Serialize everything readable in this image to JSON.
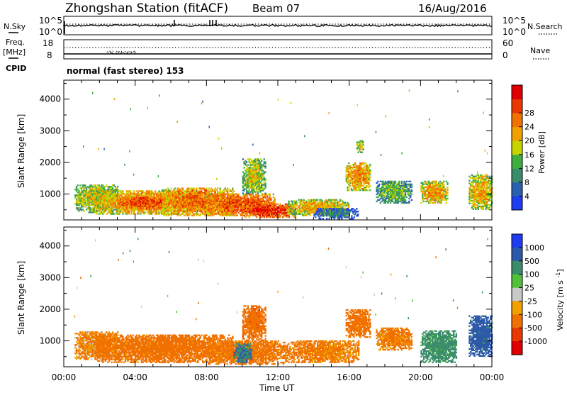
{
  "header": {
    "station": "Zhongshan Station (fitACF)",
    "beam": "Beam 07",
    "date": "16/Aug/2016"
  },
  "strip_panels": {
    "nsky_label": "N.Sky",
    "nsky_ticks": [
      "10^5",
      "10^0"
    ],
    "nsearch_label": "N.Search",
    "nsearch_ticks": [
      "10^5",
      "10^0"
    ],
    "freq_label_1": "Freq.",
    "freq_label_2": "[MHz]",
    "freq_ticks": [
      "18",
      "8"
    ],
    "nave_label": "Nave",
    "nave_ticks": [
      "60",
      "0"
    ],
    "cpid_label": "CPID",
    "cpid_text": "normal (fast stereo) 153"
  },
  "axes": {
    "ylabel": "Slant Range [km]",
    "xlabel": "Time UT",
    "yticks": [
      "1000",
      "2000",
      "3000",
      "4000"
    ],
    "xticks": [
      "00:00",
      "04:00",
      "08:00",
      "12:00",
      "16:00",
      "20:00",
      "00:00"
    ]
  },
  "power_colorbar": {
    "label": "Power [dB]",
    "ticks": [
      "4",
      "8",
      "12",
      "16",
      "20",
      "24",
      "28"
    ],
    "colors": [
      "#1f3cf0",
      "#2b5fb0",
      "#3a8c6a",
      "#3fae3f",
      "#c8d400",
      "#f0a000",
      "#f07000",
      "#e83800",
      "#e00000"
    ]
  },
  "velocity_colorbar": {
    "label": "Velocity [m s^-1]",
    "ticks": [
      "1000",
      "500",
      "100",
      "25",
      "-25",
      "-100",
      "-500",
      "-1000"
    ],
    "colors": [
      "#1f3cf0",
      "#2d5aa8",
      "#3a8c6a",
      "#52c03a",
      "#c8c8c8",
      "#f0a000",
      "#f07000",
      "#e83800",
      "#e00000"
    ]
  },
  "chart_data": [
    {
      "type": "heatmap",
      "title": "Power [dB]",
      "xlabel": "Time UT",
      "ylabel": "Slant Range [km]",
      "xlim": [
        0,
        24
      ],
      "ylim": [
        180,
        4600
      ],
      "clim": [
        0,
        32
      ],
      "blobs": [
        {
          "t0": 0.6,
          "t1": 3.0,
          "r0": 400,
          "r1": 1300,
          "p": 18
        },
        {
          "t0": 1.8,
          "t1": 7.5,
          "r0": 350,
          "r1": 1100,
          "p": 22
        },
        {
          "t0": 3.0,
          "t1": 6.0,
          "r0": 500,
          "r1": 900,
          "p": 27
        },
        {
          "t0": 5.5,
          "t1": 9.5,
          "r0": 300,
          "r1": 1200,
          "p": 24
        },
        {
          "t0": 8.0,
          "t1": 11.8,
          "r0": 300,
          "r1": 1000,
          "p": 26
        },
        {
          "t0": 10.0,
          "t1": 13.0,
          "r0": 250,
          "r1": 700,
          "p": 29
        },
        {
          "t0": 10.0,
          "t1": 11.3,
          "r0": 1000,
          "r1": 2100,
          "p": 17
        },
        {
          "t0": 12.5,
          "t1": 16.0,
          "r0": 300,
          "r1": 800,
          "p": 20
        },
        {
          "t0": 14.0,
          "t1": 16.5,
          "r0": 200,
          "r1": 550,
          "p": 9
        },
        {
          "t0": 15.8,
          "t1": 17.2,
          "r0": 1100,
          "r1": 2000,
          "p": 22
        },
        {
          "t0": 16.4,
          "t1": 16.8,
          "r0": 2300,
          "r1": 2700,
          "p": 18
        },
        {
          "t0": 17.5,
          "t1": 19.5,
          "r0": 700,
          "r1": 1400,
          "p": 14
        },
        {
          "t0": 20.0,
          "t1": 21.5,
          "r0": 700,
          "r1": 1400,
          "p": 21
        },
        {
          "t0": 22.7,
          "t1": 24.0,
          "r0": 500,
          "r1": 1600,
          "p": 20
        }
      ]
    },
    {
      "type": "heatmap",
      "title": "Velocity [m s^-1]",
      "xlabel": "Time UT",
      "ylabel": "Slant Range [km]",
      "xlim": [
        0,
        24
      ],
      "ylim": [
        180,
        4600
      ],
      "clim": [
        -1000,
        1000
      ],
      "blobs": [
        {
          "t0": 0.6,
          "t1": 3.0,
          "r0": 400,
          "r1": 1300,
          "v": -120
        },
        {
          "t0": 1.8,
          "t1": 9.5,
          "r0": 300,
          "r1": 1200,
          "v": -200
        },
        {
          "t0": 8.0,
          "t1": 12.5,
          "r0": 250,
          "r1": 1000,
          "v": -180
        },
        {
          "t0": 9.5,
          "t1": 10.5,
          "r0": 300,
          "r1": 900,
          "v": 300
        },
        {
          "t0": 10.0,
          "t1": 11.3,
          "r0": 1000,
          "r1": 2100,
          "v": -400
        },
        {
          "t0": 12.5,
          "t1": 16.5,
          "r0": 300,
          "r1": 1000,
          "v": -150
        },
        {
          "t0": 15.8,
          "t1": 17.2,
          "r0": 1100,
          "r1": 2000,
          "v": -200
        },
        {
          "t0": 17.5,
          "t1": 19.5,
          "r0": 700,
          "r1": 1400,
          "v": -150
        },
        {
          "t0": 20.0,
          "t1": 22.0,
          "r0": 300,
          "r1": 1300,
          "v": 150
        },
        {
          "t0": 22.7,
          "t1": 24.0,
          "r0": 500,
          "r1": 1800,
          "v": 400
        }
      ]
    }
  ]
}
